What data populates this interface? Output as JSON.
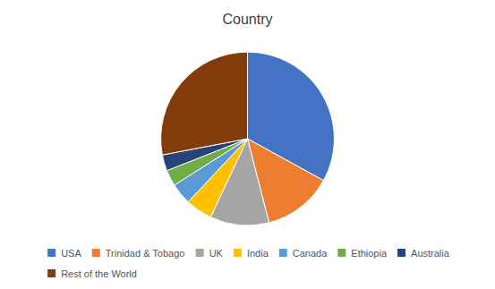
{
  "chart_data": {
    "type": "pie",
    "title": "Country",
    "categories": [
      "USA",
      "Trinidad & Tobago",
      "UK",
      "India",
      "Canada",
      "Ethiopia",
      "Australia",
      "Rest of the World"
    ],
    "values": [
      33,
      13,
      11,
      5,
      4,
      3,
      3,
      28
    ],
    "colors": [
      "#4472C4",
      "#ED7D31",
      "#A5A5A5",
      "#FFC000",
      "#5B9BD5",
      "#70AD47",
      "#264478",
      "#843C0C"
    ],
    "legend": "bottom"
  }
}
